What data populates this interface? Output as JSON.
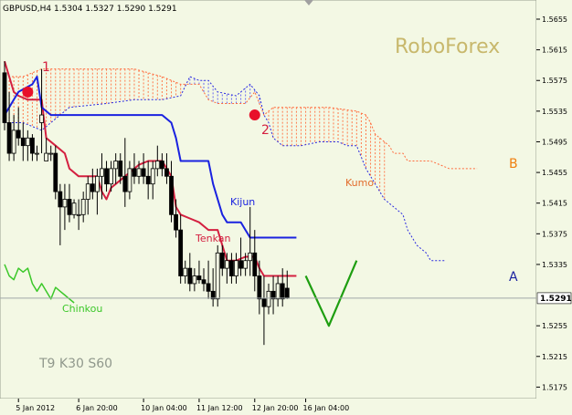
{
  "chart_data": {
    "type": "candlestick",
    "title": "GBPUSD,H4  1.5304 1.5327 1.5290 1.5291",
    "symbol": "GBPUSD,H4",
    "ohlc_header": [
      "1.5304",
      "1.5327",
      "1.5290",
      "1.5291"
    ],
    "watermark": "RoboForex",
    "settings_label": "T9 K30 S60",
    "current_price": 1.5291,
    "current_price_label": "1.5291",
    "ylim": [
      1.516,
      1.568
    ],
    "y_ticks": [
      1.5655,
      1.5615,
      1.5575,
      1.5535,
      1.5495,
      1.5455,
      1.5415,
      1.5375,
      1.5335,
      1.5255,
      1.5215,
      1.5175
    ],
    "y_tick_labels": [
      "1.5655",
      "1.5615",
      "1.5575",
      "1.5535",
      "1.5495",
      "1.5455",
      "1.5415",
      "1.5375",
      "1.5335",
      "1.5255",
      "1.5215",
      "1.5175"
    ],
    "x_tick_labels": [
      {
        "bar": 3,
        "label": "5 Jan 2012"
      },
      {
        "bar": 16,
        "label": "6 Jan 20:00"
      },
      {
        "bar": 30,
        "label": "10 Jan 04:00"
      },
      {
        "bar": 42,
        "label": "11 Jan 12:00"
      },
      {
        "bar": 54,
        "label": "12 Jan 20:00"
      },
      {
        "bar": 65,
        "label": "16 Jan 04:00"
      }
    ],
    "annotation_labels": {
      "kijun": "Kijun",
      "tenkan": "Tenkan",
      "kumo": "Kumo",
      "chinkou": "Chinkou",
      "point1": "1",
      "point2": "2",
      "A": "A",
      "B": "B"
    },
    "candles": [
      [
        1.5585,
        1.56,
        1.551,
        1.552
      ],
      [
        1.552,
        1.556,
        1.547,
        1.548
      ],
      [
        1.548,
        1.553,
        1.547,
        1.551
      ],
      [
        1.551,
        1.554,
        1.549,
        1.55
      ],
      [
        1.55,
        1.552,
        1.547,
        1.549
      ],
      [
        1.549,
        1.551,
        1.547,
        1.55
      ],
      [
        1.55,
        1.5505,
        1.547,
        1.548
      ],
      [
        1.548,
        1.549,
        1.547,
        1.548
      ],
      [
        1.552,
        1.559,
        1.548,
        1.553
      ],
      [
        1.547,
        1.55,
        1.547,
        1.548
      ],
      [
        1.548,
        1.549,
        1.547,
        1.548
      ],
      [
        1.548,
        1.549,
        1.542,
        1.543
      ],
      [
        1.543,
        1.544,
        1.536,
        1.541
      ],
      [
        1.541,
        1.544,
        1.538,
        1.542
      ],
      [
        1.542,
        1.544,
        1.539,
        1.54
      ],
      [
        1.54,
        1.542,
        1.5395,
        1.5415
      ],
      [
        1.54,
        1.542,
        1.538,
        1.54
      ],
      [
        1.54,
        1.543,
        1.539,
        1.542
      ],
      [
        1.542,
        1.545,
        1.54,
        1.544
      ],
      [
        1.544,
        1.546,
        1.542,
        1.543
      ],
      [
        1.543,
        1.546,
        1.54,
        1.545
      ],
      [
        1.545,
        1.548,
        1.542,
        1.546
      ],
      [
        1.546,
        1.547,
        1.543,
        1.544
      ],
      [
        1.544,
        1.547,
        1.543,
        1.546
      ],
      [
        1.546,
        1.548,
        1.544,
        1.547
      ],
      [
        1.547,
        1.548,
        1.544,
        1.545
      ],
      [
        1.545,
        1.55,
        1.541,
        1.543
      ],
      [
        1.543,
        1.547,
        1.542,
        1.546
      ],
      [
        1.546,
        1.548,
        1.544,
        1.545
      ],
      [
        1.545,
        1.547,
        1.544,
        1.546
      ],
      [
        1.546,
        1.548,
        1.544,
        1.545
      ],
      [
        1.545,
        1.547,
        1.542,
        1.544
      ],
      [
        1.544,
        1.547,
        1.542,
        1.546
      ],
      [
        1.546,
        1.549,
        1.545,
        1.547
      ],
      [
        1.547,
        1.548,
        1.545,
        1.546
      ],
      [
        1.546,
        1.548,
        1.544,
        1.545
      ],
      [
        1.545,
        1.547,
        1.539,
        1.54
      ],
      [
        1.54,
        1.542,
        1.537,
        1.538
      ],
      [
        1.538,
        1.54,
        1.531,
        1.532
      ],
      [
        1.532,
        1.534,
        1.531,
        1.533
      ],
      [
        1.533,
        1.535,
        1.53,
        1.531
      ],
      [
        1.531,
        1.533,
        1.53,
        1.532
      ],
      [
        1.532,
        1.534,
        1.531,
        1.5315
      ],
      [
        1.5315,
        1.533,
        1.53,
        1.531
      ],
      [
        1.531,
        1.534,
        1.529,
        1.53
      ],
      [
        1.53,
        1.533,
        1.528,
        1.529
      ],
      [
        1.529,
        1.536,
        1.528,
        1.535
      ],
      [
        1.535,
        1.536,
        1.532,
        1.533
      ],
      [
        1.533,
        1.535,
        1.531,
        1.534
      ],
      [
        1.534,
        1.535,
        1.531,
        1.532
      ],
      [
        1.532,
        1.535,
        1.531,
        1.534
      ],
      [
        1.534,
        1.537,
        1.532,
        1.533
      ],
      [
        1.533,
        1.535,
        1.532,
        1.534
      ],
      [
        1.534,
        1.541,
        1.532,
        1.535
      ],
      [
        1.535,
        1.538,
        1.53,
        1.532
      ],
      [
        1.532,
        1.534,
        1.527,
        1.529
      ],
      [
        1.529,
        1.532,
        1.523,
        1.528
      ],
      [
        1.528,
        1.531,
        1.527,
        1.53
      ],
      [
        1.53,
        1.532,
        1.527,
        1.529
      ],
      [
        1.529,
        1.532,
        1.528,
        1.531
      ],
      [
        1.531,
        1.533,
        1.528,
        1.529
      ],
      [
        1.5304,
        1.5327,
        1.529,
        1.5291
      ]
    ],
    "series": [
      {
        "name": "Tenkan",
        "color": "#d42040",
        "points": [
          [
            0,
            1.56
          ],
          [
            1,
            1.558
          ],
          [
            2,
            1.556
          ],
          [
            3,
            1.5555
          ],
          [
            5,
            1.555
          ],
          [
            8,
            1.555
          ],
          [
            9,
            1.55
          ],
          [
            11,
            1.549
          ],
          [
            13,
            1.548
          ],
          [
            14,
            1.546
          ],
          [
            16,
            1.545
          ],
          [
            18,
            1.545
          ],
          [
            20,
            1.545
          ],
          [
            21,
            1.543
          ],
          [
            22,
            1.542
          ],
          [
            23,
            1.5435
          ],
          [
            24,
            1.544
          ],
          [
            26,
            1.545
          ],
          [
            28,
            1.546
          ],
          [
            29,
            1.5465
          ],
          [
            31,
            1.547
          ],
          [
            34,
            1.547
          ],
          [
            35,
            1.546
          ],
          [
            36,
            1.545
          ],
          [
            37,
            1.541
          ],
          [
            38,
            1.54
          ],
          [
            40,
            1.5395
          ],
          [
            42,
            1.539
          ],
          [
            44,
            1.538
          ],
          [
            46,
            1.538
          ],
          [
            47,
            1.536
          ],
          [
            48,
            1.534
          ],
          [
            50,
            1.534
          ],
          [
            52,
            1.5345
          ],
          [
            54,
            1.5345
          ],
          [
            55,
            1.533
          ],
          [
            56,
            1.532
          ],
          [
            58,
            1.532
          ],
          [
            63,
            1.532
          ]
        ]
      },
      {
        "name": "Kijun",
        "color": "#1a22e0",
        "points": [
          [
            0,
            1.553
          ],
          [
            1,
            1.554
          ],
          [
            2,
            1.555
          ],
          [
            3,
            1.556
          ],
          [
            6,
            1.557
          ],
          [
            7,
            1.558
          ],
          [
            8,
            1.554
          ],
          [
            10,
            1.553
          ],
          [
            34,
            1.553
          ],
          [
            36,
            1.552
          ],
          [
            37,
            1.55
          ],
          [
            38,
            1.547
          ],
          [
            44,
            1.547
          ],
          [
            45,
            1.544
          ],
          [
            47,
            1.54
          ],
          [
            48,
            1.539
          ],
          [
            51,
            1.539
          ],
          [
            52,
            1.538
          ],
          [
            53,
            1.537
          ],
          [
            63,
            1.537
          ]
        ]
      },
      {
        "name": "Chinkou",
        "color": "#3cc82a",
        "points": [
          [
            0,
            1.5335
          ],
          [
            1,
            1.532
          ],
          [
            2,
            1.5315
          ],
          [
            3,
            1.533
          ],
          [
            4,
            1.5325
          ],
          [
            5,
            1.533
          ],
          [
            6,
            1.531
          ],
          [
            7,
            1.53
          ],
          [
            8,
            1.531
          ],
          [
            9,
            1.53
          ],
          [
            10,
            1.529
          ],
          [
            11,
            1.5305
          ],
          [
            12,
            1.53
          ],
          [
            13,
            1.5295
          ],
          [
            14,
            1.529
          ],
          [
            15,
            1.5285
          ]
        ]
      },
      {
        "name": "Forecast",
        "color": "#1e9e10",
        "points": [
          [
            65,
            1.532
          ],
          [
            70,
            1.5255
          ],
          [
            76,
            1.534
          ]
        ]
      }
    ],
    "kumo": {
      "x_start": 0,
      "x_end": 82,
      "upper": [
        [
          0,
          1.558
        ],
        [
          4,
          1.558
        ],
        [
          8,
          1.559
        ],
        [
          14,
          1.559
        ],
        [
          22,
          1.559
        ],
        [
          28,
          1.559
        ],
        [
          34,
          1.558
        ],
        [
          38,
          1.557
        ],
        [
          42,
          1.557
        ],
        [
          44,
          1.555
        ],
        [
          46,
          1.5545
        ],
        [
          52,
          1.5545
        ],
        [
          54,
          1.556
        ],
        [
          56,
          1.553
        ],
        [
          58,
          1.554
        ],
        [
          66,
          1.554
        ],
        [
          70,
          1.554
        ],
        [
          76,
          1.5535
        ],
        [
          78,
          1.553
        ],
        [
          79,
          1.552
        ],
        [
          80,
          1.5505
        ],
        [
          82,
          1.5495
        ],
        [
          83,
          1.549
        ],
        [
          84,
          1.548
        ],
        [
          86,
          1.548
        ],
        [
          87,
          1.547
        ],
        [
          89,
          1.547
        ],
        [
          92,
          1.547
        ],
        [
          96,
          1.546
        ],
        [
          100,
          1.546
        ],
        [
          102,
          1.546
        ]
      ],
      "lower": [
        [
          0,
          1.552
        ],
        [
          4,
          1.552
        ],
        [
          8,
          1.551
        ],
        [
          10,
          1.552
        ],
        [
          14,
          1.554
        ],
        [
          22,
          1.5545
        ],
        [
          28,
          1.555
        ],
        [
          34,
          1.555
        ],
        [
          38,
          1.5555
        ],
        [
          40,
          1.558
        ],
        [
          42,
          1.5575
        ],
        [
          44,
          1.5575
        ],
        [
          46,
          1.556
        ],
        [
          50,
          1.5555
        ],
        [
          53,
          1.557
        ],
        [
          55,
          1.5555
        ],
        [
          56,
          1.553
        ],
        [
          57,
          1.552
        ],
        [
          58,
          1.55
        ],
        [
          60,
          1.549
        ],
        [
          64,
          1.549
        ],
        [
          68,
          1.5495
        ],
        [
          72,
          1.5495
        ],
        [
          74,
          1.549
        ],
        [
          76,
          1.549
        ],
        [
          78,
          1.546
        ],
        [
          80,
          1.544
        ],
        [
          82,
          1.542
        ],
        [
          84,
          1.541
        ],
        [
          86,
          1.54
        ],
        [
          87,
          1.538
        ],
        [
          89,
          1.536
        ],
        [
          91,
          1.535
        ],
        [
          92,
          1.534
        ],
        [
          95,
          1.534
        ]
      ]
    },
    "markers": [
      {
        "label": "1",
        "bar": 5,
        "price": 1.556
      },
      {
        "label": "2",
        "bar": 54,
        "price": 1.553
      }
    ]
  }
}
